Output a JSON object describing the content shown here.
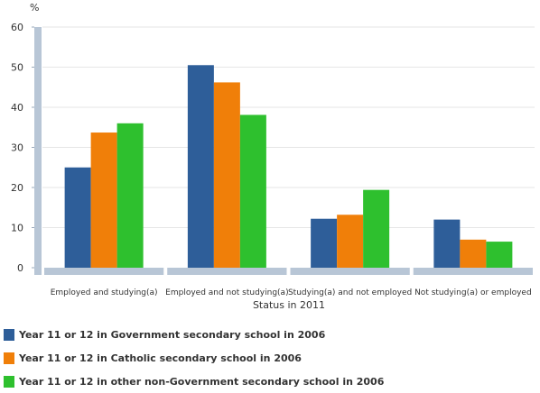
{
  "chart_data": {
    "type": "bar",
    "title": "",
    "ylabel": "%",
    "xlabel": "Status in 2011",
    "ylim": [
      0,
      60
    ],
    "yticks": [
      0,
      10,
      20,
      30,
      40,
      50,
      60
    ],
    "grid": true,
    "legend_position": "bottom",
    "categories": [
      "Employed and studying(a)",
      "Employed and not studying(a)",
      "Studying(a) and not employed",
      "Not studying(a) or employed"
    ],
    "series": [
      {
        "name": "Year 11 or 12 in Government secondary school in 2006",
        "color": "#2e5e99",
        "values": [
          25,
          50.5,
          12.2,
          12
        ]
      },
      {
        "name": "Year 11 or 12 in Catholic secondary school in 2006",
        "color": "#f07f09",
        "values": [
          33.7,
          46.2,
          13.2,
          7
        ]
      },
      {
        "name": "Year 11 or 12 in other non-Government secondary school in 2006",
        "color": "#2ec02e",
        "values": [
          36,
          38.1,
          19.4,
          6.5
        ]
      }
    ],
    "axis_color": "#b8c6d6",
    "grid_color": "#e6e6e6"
  }
}
